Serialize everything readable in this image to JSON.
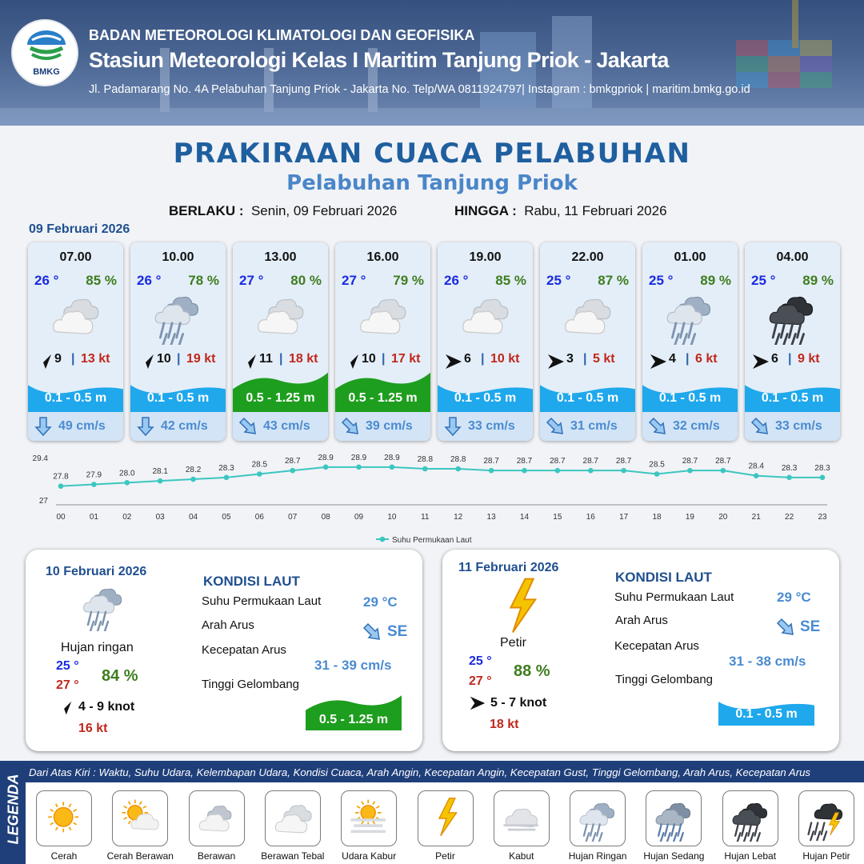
{
  "header": {
    "logo_text": "BMKG",
    "organization": "BADAN METEOROLOGI KLIMATOLOGI DAN GEOFISIKA",
    "station": "Stasiun Meteorologi Kelas I Maritim Tanjung Priok - Jakarta",
    "address": "Jl. Padamarang No. 4A Pelabuhan Tanjung Priok - Jakarta No. Telp/WA 0811924797| Instagram : bmkgpriok | maritim.bmkg.go.id"
  },
  "title": "PRAKIRAAN CUACA PELABUHAN",
  "subtitle": "Pelabuhan Tanjung Priok",
  "validity": {
    "from_label": "BERLAKU :",
    "from": "Senin, 09 Februari 2026",
    "to_label": "HINGGA :",
    "to": "Rabu, 11 Februari 2026"
  },
  "day1": {
    "date": "09 Februari 2026",
    "cards": [
      {
        "time": "07.00",
        "temp": "26 °",
        "hum": "85 %",
        "icon": "berawan-tebal-icon",
        "wind_dir": "NE",
        "wind": "9",
        "gust": "13 kt",
        "wave": "0.1 - 0.5 m",
        "wave_level": "low",
        "cur_dir": "S",
        "current": "49 cm/s"
      },
      {
        "time": "10.00",
        "temp": "26 °",
        "hum": "78 %",
        "icon": "hujan-ringan-icon",
        "wind_dir": "NE",
        "wind": "10",
        "gust": "19 kt",
        "wave": "0.1 - 0.5 m",
        "wave_level": "low",
        "cur_dir": "S",
        "current": "42 cm/s"
      },
      {
        "time": "13.00",
        "temp": "27 °",
        "hum": "80 %",
        "icon": "berawan-tebal-icon",
        "wind_dir": "NE",
        "wind": "11",
        "gust": "18 kt",
        "wave": "0.5 - 1.25 m",
        "wave_level": "moderate",
        "cur_dir": "SE",
        "current": "43 cm/s"
      },
      {
        "time": "16.00",
        "temp": "27 °",
        "hum": "79 %",
        "icon": "berawan-tebal-icon",
        "wind_dir": "NE",
        "wind": "10",
        "gust": "17 kt",
        "wave": "0.5 - 1.25 m",
        "wave_level": "moderate",
        "cur_dir": "SE",
        "current": "39 cm/s"
      },
      {
        "time": "19.00",
        "temp": "26 °",
        "hum": "85 %",
        "icon": "berawan-tebal-icon",
        "wind_dir": "E",
        "wind": "6",
        "gust": "10 kt",
        "wave": "0.1 - 0.5 m",
        "wave_level": "low",
        "cur_dir": "S",
        "current": "33 cm/s"
      },
      {
        "time": "22.00",
        "temp": "25 °",
        "hum": "87 %",
        "icon": "berawan-tebal-icon",
        "wind_dir": "E",
        "wind": "3",
        "gust": "5 kt",
        "wave": "0.1 - 0.5 m",
        "wave_level": "low",
        "cur_dir": "SE",
        "current": "31 cm/s"
      },
      {
        "time": "01.00",
        "temp": "25 °",
        "hum": "89 %",
        "icon": "hujan-ringan-icon",
        "wind_dir": "E",
        "wind": "4",
        "gust": "6 kt",
        "wave": "0.1 - 0.5 m",
        "wave_level": "low",
        "cur_dir": "SE",
        "current": "32 cm/s"
      },
      {
        "time": "04.00",
        "temp": "25 °",
        "hum": "89 %",
        "icon": "hujan-lebat-icon",
        "wind_dir": "E",
        "wind": "6",
        "gust": "9 kt",
        "wave": "0.1 - 0.5 m",
        "wave_level": "low",
        "cur_dir": "SE",
        "current": "33 cm/s"
      }
    ]
  },
  "chart_data": {
    "type": "line",
    "x": [
      "00",
      "01",
      "02",
      "03",
      "04",
      "05",
      "06",
      "07",
      "08",
      "09",
      "10",
      "11",
      "12",
      "13",
      "14",
      "15",
      "16",
      "17",
      "18",
      "19",
      "20",
      "21",
      "22",
      "23"
    ],
    "series": [
      {
        "name": "Suhu Permukaan Laut",
        "values": [
          27.8,
          27.9,
          28.0,
          28.1,
          28.2,
          28.3,
          28.5,
          28.7,
          28.9,
          28.9,
          28.9,
          28.8,
          28.8,
          28.7,
          28.7,
          28.7,
          28.7,
          28.7,
          28.5,
          28.7,
          28.7,
          28.4,
          28.3,
          28.3
        ],
        "color": "#3cc6c0"
      }
    ],
    "ylim": [
      27,
      29.4
    ],
    "ytick_labels": [
      "29.4",
      "27"
    ],
    "legend": "bottom",
    "grid": false
  },
  "day2": {
    "date": "10 Februari 2026",
    "icon": "hujan-ringan-icon",
    "condition": "Hujan ringan",
    "tmin": "25 °",
    "tmax": "27 °",
    "hum": "84 %",
    "wind_dir": "NE",
    "wind": "4 - 9 knot",
    "gust": "16 kt",
    "heading": "KONDISI LAUT",
    "sst_label": "Suhu Permukaan Laut",
    "sst": "29 °C",
    "cur_dir_label": "Arah Arus",
    "cur_dir": "SE",
    "cur_spd_label": "Kecepatan Arus",
    "cur_spd": "31 - 39 cm/s",
    "wave_label": "Tinggi Gelombang",
    "wave": "0.5 - 1.25 m",
    "wave_level": "moderate"
  },
  "day3": {
    "date": "11 Februari 2026",
    "icon": "petir-icon",
    "condition": "Petir",
    "tmin": "25 °",
    "tmax": "27 °",
    "hum": "88 %",
    "wind_dir": "E",
    "wind": "5 - 7 knot",
    "gust": "18 kt",
    "heading": "KONDISI LAUT",
    "sst_label": "Suhu Permukaan Laut",
    "sst": "29 °C",
    "cur_dir_label": "Arah Arus",
    "cur_dir": "SE",
    "cur_spd_label": "Kecepatan Arus",
    "cur_spd": "31 - 38 cm/s",
    "wave_label": "Tinggi Gelombang",
    "wave": "0.1 - 0.5 m",
    "wave_level": "low"
  },
  "legend": {
    "title": "LEGENDA",
    "description": "Dari Atas Kiri : Waktu, Suhu Udara, Kelembapan Udara, Kondisi Cuaca, Arah Angin, Kecepatan Angin, Kecepatan Gust, Tinggi Gelombang, Arah Arus, Kecepatan Arus",
    "items": [
      {
        "label": "Cerah",
        "icon": "cerah-icon"
      },
      {
        "label": "Cerah Berawan",
        "icon": "cerah-berawan-icon"
      },
      {
        "label": "Berawan",
        "icon": "berawan-icon"
      },
      {
        "label": "Berawan Tebal",
        "icon": "berawan-tebal-icon"
      },
      {
        "label": "Udara Kabur",
        "icon": "udara-kabur-icon"
      },
      {
        "label": "Petir",
        "icon": "petir-icon"
      },
      {
        "label": "Kabut",
        "icon": "kabut-icon"
      },
      {
        "label": "Hujan Ringan",
        "icon": "hujan-ringan-icon"
      },
      {
        "label": "Hujan Sedang",
        "icon": "hujan-sedang-icon"
      },
      {
        "label": "Hujan Lebat",
        "icon": "hujan-lebat-icon"
      },
      {
        "label": "Hujan Petir",
        "icon": "hujan-petir-icon"
      }
    ]
  },
  "colors": {
    "wave_low": "#1fa8ec",
    "wave_moderate": "#1e9e1e",
    "temp": "#1a2be0",
    "humidity": "#3e7d1e",
    "gust": "#c0271c",
    "accent": "#1f5f9f"
  }
}
